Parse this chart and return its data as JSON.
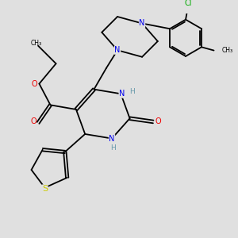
{
  "background_color": "#e0e0e0",
  "bond_color": "#000000",
  "atom_colors": {
    "N": "#0000ee",
    "O": "#ee0000",
    "S": "#cccc00",
    "Cl": "#00aa00",
    "H": "#6699aa"
  },
  "lw": 1.3,
  "fs": 7.0
}
